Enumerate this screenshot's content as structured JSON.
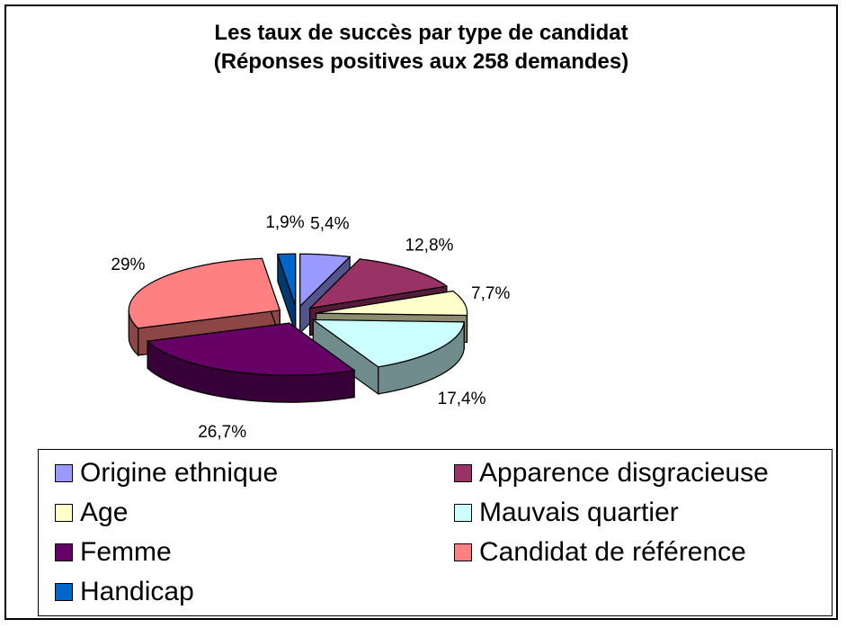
{
  "chart_data": {
    "type": "pie",
    "title": "Les taux de succès par type de candidat",
    "subtitle": "(Réponses positives aux 258 demandes)",
    "slices": [
      {
        "name": "Origine ethnique",
        "value": 5.4,
        "label": "5,4%",
        "color": "#9999ff"
      },
      {
        "name": "Apparence disgracieuse",
        "value": 12.8,
        "label": "12,8%",
        "color": "#993366"
      },
      {
        "name": "Age",
        "value": 7.7,
        "label": "7,7%",
        "color": "#ffffcc"
      },
      {
        "name": "Mauvais quartier",
        "value": 17.4,
        "label": "17,4%",
        "color": "#ccffff"
      },
      {
        "name": "Femme",
        "value": 26.7,
        "label": "26,7%",
        "color": "#660066"
      },
      {
        "name": "Candidat de référence",
        "value": 29,
        "label": "29%",
        "color": "#ff8080"
      },
      {
        "name": "Handicap",
        "value": 1.9,
        "label": "1,9%",
        "color": "#0066cc"
      }
    ],
    "legend_position": "bottom",
    "exploded": true,
    "three_d": true
  }
}
